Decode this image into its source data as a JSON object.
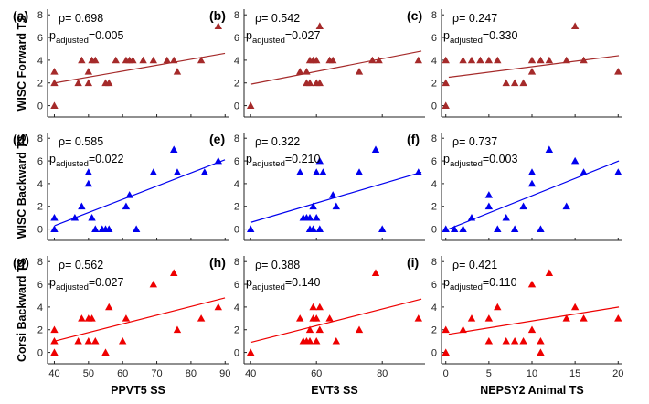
{
  "chart_data": {
    "type": "scatter",
    "row_labels": [
      "WISC Forward TS",
      "WISC Backward TS",
      "Corsi Backward TS"
    ],
    "col_labels": [
      "PPVT5 SS",
      "EVT3 SS",
      "NEPSY2 Animal TS"
    ],
    "col_xlim": [
      [
        38,
        91
      ],
      [
        38,
        93
      ],
      [
        -0.5,
        20.5
      ]
    ],
    "col_xticks": [
      [
        40,
        50,
        60,
        70,
        80,
        90
      ],
      [
        40,
        60,
        80
      ],
      [
        0,
        5,
        10,
        15,
        20
      ]
    ],
    "ylim": [
      -1,
      8.5
    ],
    "yticks": [
      0,
      2,
      4,
      6,
      8
    ],
    "row_colors": [
      "#A52A2A",
      "#0000EE",
      "#EE0000"
    ],
    "stat_rho_prefix": "ρ= ",
    "stat_p_prefix": "p",
    "stat_p_sub": "adjusted",
    "stat_p_eq": "=",
    "panels": [
      {
        "label": "(a)",
        "rho": "0.698",
        "p": "0.005",
        "line": [
          2.0,
          4.6
        ],
        "points": [
          [
            40,
            0
          ],
          [
            40,
            3
          ],
          [
            40,
            2
          ],
          [
            47,
            2
          ],
          [
            48,
            4
          ],
          [
            50,
            3
          ],
          [
            50,
            2
          ],
          [
            51,
            4
          ],
          [
            52,
            4
          ],
          [
            55,
            2
          ],
          [
            56,
            2
          ],
          [
            58,
            4
          ],
          [
            61,
            4
          ],
          [
            62,
            4
          ],
          [
            63,
            4
          ],
          [
            66,
            4
          ],
          [
            69,
            4
          ],
          [
            73,
            4
          ],
          [
            75,
            4
          ],
          [
            76,
            3
          ],
          [
            83,
            4
          ],
          [
            88,
            7
          ]
        ]
      },
      {
        "label": "(b)",
        "rho": "0.542",
        "p": "0.027",
        "line": [
          1.9,
          4.8
        ],
        "points": [
          [
            40,
            0
          ],
          [
            55,
            3
          ],
          [
            57,
            3
          ],
          [
            57,
            2
          ],
          [
            58,
            4
          ],
          [
            58,
            2
          ],
          [
            59,
            4
          ],
          [
            60,
            4
          ],
          [
            60,
            2
          ],
          [
            61,
            2
          ],
          [
            61,
            7
          ],
          [
            64,
            4
          ],
          [
            65,
            4
          ],
          [
            73,
            3
          ],
          [
            77,
            4
          ],
          [
            79,
            4
          ],
          [
            91,
            4
          ]
        ]
      },
      {
        "label": "(c)",
        "rho": "0.247",
        "p": "0.330",
        "line": [
          2.5,
          4.4
        ],
        "points": [
          [
            0,
            0
          ],
          [
            0,
            4
          ],
          [
            0,
            2
          ],
          [
            2,
            4
          ],
          [
            3,
            4
          ],
          [
            4,
            4
          ],
          [
            5,
            4
          ],
          [
            6,
            4
          ],
          [
            7,
            2
          ],
          [
            8,
            2
          ],
          [
            9,
            2
          ],
          [
            10,
            4
          ],
          [
            10,
            3
          ],
          [
            11,
            4
          ],
          [
            12,
            4
          ],
          [
            14,
            4
          ],
          [
            15,
            7
          ],
          [
            16,
            4
          ],
          [
            20,
            3
          ]
        ]
      },
      {
        "label": "(d)",
        "rho": "0.585",
        "p": "0.022",
        "line": [
          0.3,
          6.1
        ],
        "points": [
          [
            40,
            0
          ],
          [
            40,
            1
          ],
          [
            46,
            1
          ],
          [
            48,
            2
          ],
          [
            50,
            4
          ],
          [
            50,
            5
          ],
          [
            51,
            1
          ],
          [
            52,
            0
          ],
          [
            54,
            0
          ],
          [
            55,
            0
          ],
          [
            56,
            0
          ],
          [
            61,
            2
          ],
          [
            62,
            3
          ],
          [
            64,
            0
          ],
          [
            69,
            5
          ],
          [
            75,
            7
          ],
          [
            76,
            5
          ],
          [
            84,
            5
          ],
          [
            88,
            6
          ]
        ]
      },
      {
        "label": "(e)",
        "rho": "0.322",
        "p": "0.210",
        "line": [
          0.6,
          5.0
        ],
        "points": [
          [
            40,
            0
          ],
          [
            55,
            5
          ],
          [
            56,
            1
          ],
          [
            57,
            1
          ],
          [
            58,
            0
          ],
          [
            58,
            1
          ],
          [
            59,
            2
          ],
          [
            59,
            0
          ],
          [
            60,
            5
          ],
          [
            60,
            1
          ],
          [
            61,
            6
          ],
          [
            61,
            0
          ],
          [
            62,
            5
          ],
          [
            65,
            3
          ],
          [
            66,
            2
          ],
          [
            73,
            5
          ],
          [
            78,
            7
          ],
          [
            80,
            0
          ],
          [
            91,
            5
          ]
        ]
      },
      {
        "label": "(f)",
        "rho": "0.737",
        "p": "0.003",
        "line": [
          0.0,
          6.0
        ],
        "points": [
          [
            0,
            0
          ],
          [
            1,
            0
          ],
          [
            2,
            0
          ],
          [
            3,
            1
          ],
          [
            5,
            3
          ],
          [
            5,
            2
          ],
          [
            6,
            0
          ],
          [
            7,
            1
          ],
          [
            8,
            0
          ],
          [
            9,
            2
          ],
          [
            10,
            5
          ],
          [
            10,
            4
          ],
          [
            11,
            0
          ],
          [
            12,
            7
          ],
          [
            14,
            2
          ],
          [
            15,
            6
          ],
          [
            16,
            5
          ],
          [
            20,
            5
          ]
        ]
      },
      {
        "label": "(g)",
        "rho": "0.562",
        "p": "0.027",
        "line": [
          1.0,
          4.8
        ],
        "points": [
          [
            40,
            0
          ],
          [
            40,
            2
          ],
          [
            40,
            1
          ],
          [
            47,
            1
          ],
          [
            48,
            3
          ],
          [
            50,
            3
          ],
          [
            50,
            1
          ],
          [
            51,
            3
          ],
          [
            52,
            1
          ],
          [
            55,
            0
          ],
          [
            56,
            4
          ],
          [
            60,
            1
          ],
          [
            61,
            3
          ],
          [
            69,
            6
          ],
          [
            75,
            7
          ],
          [
            76,
            2
          ],
          [
            83,
            3
          ],
          [
            88,
            4
          ]
        ]
      },
      {
        "label": "(h)",
        "rho": "0.388",
        "p": "0.140",
        "line": [
          0.9,
          4.7
        ],
        "points": [
          [
            40,
            0
          ],
          [
            55,
            3
          ],
          [
            56,
            1
          ],
          [
            57,
            1
          ],
          [
            58,
            2
          ],
          [
            58,
            1
          ],
          [
            59,
            4
          ],
          [
            59,
            3
          ],
          [
            60,
            1
          ],
          [
            60,
            3
          ],
          [
            61,
            4
          ],
          [
            61,
            2
          ],
          [
            64,
            3
          ],
          [
            66,
            1
          ],
          [
            73,
            2
          ],
          [
            78,
            7
          ],
          [
            91,
            3
          ]
        ]
      },
      {
        "label": "(i)",
        "rho": "0.421",
        "p": "0.110",
        "line": [
          1.6,
          4.0
        ],
        "points": [
          [
            0,
            0
          ],
          [
            0,
            2
          ],
          [
            2,
            2
          ],
          [
            3,
            3
          ],
          [
            5,
            3
          ],
          [
            5,
            1
          ],
          [
            6,
            4
          ],
          [
            7,
            1
          ],
          [
            8,
            1
          ],
          [
            9,
            1
          ],
          [
            10,
            6
          ],
          [
            10,
            2
          ],
          [
            11,
            1
          ],
          [
            11,
            0
          ],
          [
            12,
            7
          ],
          [
            14,
            3
          ],
          [
            15,
            4
          ],
          [
            16,
            3
          ],
          [
            20,
            3
          ]
        ]
      }
    ]
  }
}
